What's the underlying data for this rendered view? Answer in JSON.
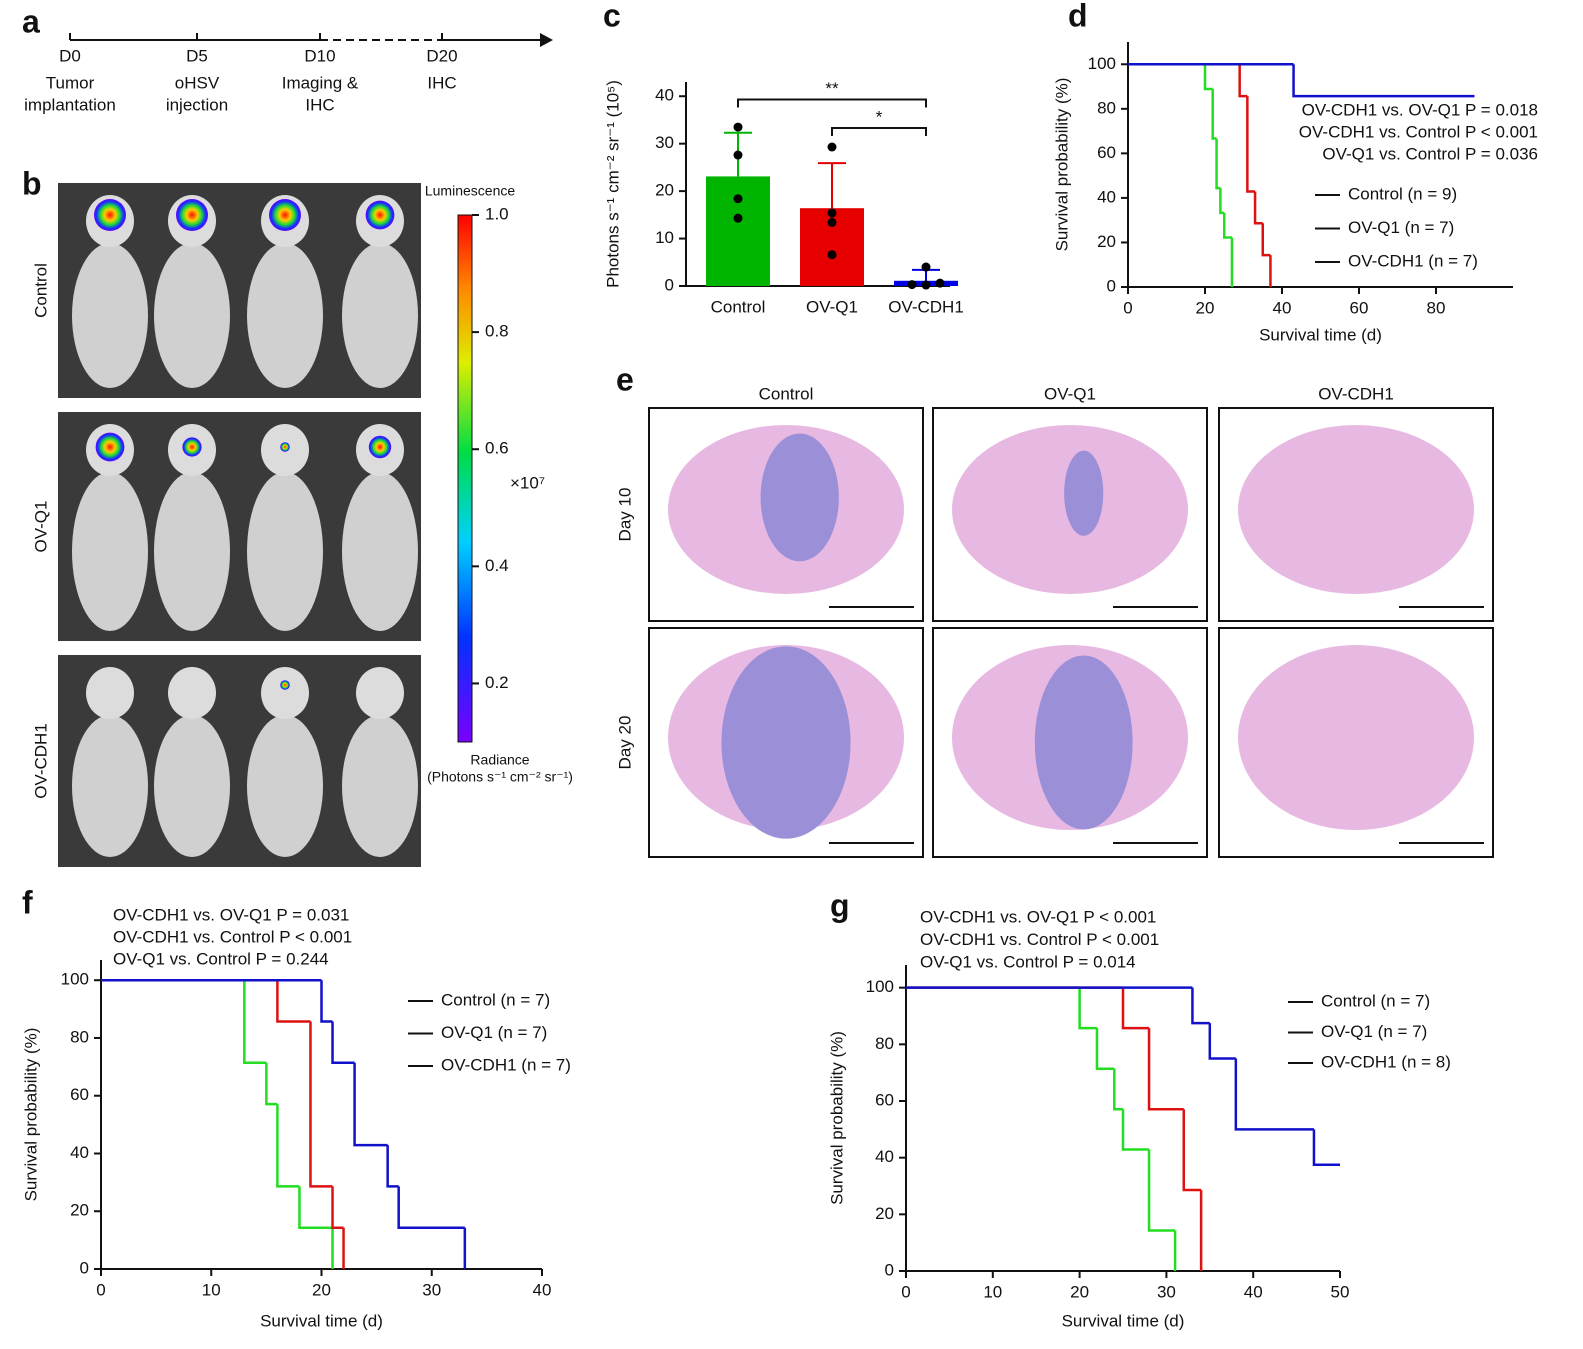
{
  "panel_a": {
    "letter": "a",
    "ticks": [
      "D0",
      "D5",
      "D10",
      "D20"
    ],
    "events": [
      [
        "Tumor",
        "implantation"
      ],
      [
        "oHSV",
        "injection"
      ],
      [
        "Imaging &",
        "IHC"
      ],
      [
        "IHC"
      ]
    ]
  },
  "panel_b": {
    "letter": "b",
    "rows": [
      "Control",
      "OV-Q1",
      "OV-CDH1"
    ],
    "colorbar": {
      "title": "Luminescence",
      "ylim": [
        0.1,
        1.0
      ],
      "yticks": [
        0.2,
        0.4,
        0.6,
        0.8,
        {
          "value": 1,
          "label": "1.0"
        }
      ],
      "multiplier": "×10⁷",
      "label": [
        "Radiance",
        "(Photons s⁻¹ cm⁻² sr⁻¹)"
      ]
    }
  },
  "panel_e": {
    "letter": "e",
    "columns": [
      "Control",
      "OV-Q1",
      "OV-CDH1"
    ],
    "rows": [
      "Day 10",
      "Day 20"
    ]
  },
  "chart_data": [
    {
      "panel": "c",
      "type": "bar",
      "ylabel": "Photons s⁻¹ cm⁻² sr⁻¹ (10⁵)",
      "categories": [
        "Control",
        "OV-Q1",
        "OV-CDH1"
      ],
      "values": [
        23.1,
        16.4,
        1.1
      ],
      "errors": [
        9.2,
        9.5,
        2.3
      ],
      "colors": [
        "#00b400",
        "#e60000",
        "#0000e6"
      ],
      "points": [
        [
          33.5,
          27.6,
          18.4,
          14.3
        ],
        [
          29.3,
          15.4,
          13.4,
          6.6
        ],
        [
          4,
          0.3,
          0.2,
          0.6
        ]
      ],
      "ylim": [
        0,
        43
      ],
      "yticks": [
        0,
        10,
        20,
        30,
        40
      ],
      "significance": [
        {
          "from": 0,
          "to": 2,
          "label": "**"
        },
        {
          "from": 1,
          "to": 2,
          "label": "*"
        }
      ]
    },
    {
      "panel": "d",
      "type": "step",
      "xlabel": "Survival time (d)",
      "ylabel": "Survival probability (%)",
      "xlim": [
        0,
        100
      ],
      "ylim": [
        0,
        110
      ],
      "xticks": [
        0,
        20,
        40,
        60,
        80
      ],
      "yticks": [
        0,
        20,
        40,
        60,
        80,
        100
      ],
      "annotations": [
        "OV-CDH1 vs. OV-Q1  P = 0.018",
        "OV-CDH1 vs. Control  P < 0.001",
        "OV-Q1 vs. Control  P = 0.036"
      ],
      "series": [
        {
          "name": "Control (n = 9)",
          "color": "#22dd22",
          "x": [
            0,
            20,
            22,
            23,
            24,
            25,
            27
          ],
          "values": [
            100,
            88.9,
            66.7,
            44.4,
            33.3,
            22.2,
            0
          ]
        },
        {
          "name": "OV-Q1 (n = 7)",
          "color": "#dd1111",
          "x": [
            0,
            29,
            31,
            33,
            35,
            37
          ],
          "values": [
            100,
            85.7,
            42.9,
            28.6,
            14.3,
            0
          ]
        },
        {
          "name": "OV-CDH1 (n = 7)",
          "color": "#1111cc",
          "x": [
            0,
            43,
            90
          ],
          "values": [
            100,
            85.7,
            85.7
          ]
        }
      ]
    },
    {
      "panel": "f",
      "type": "step",
      "xlabel": "Survival time (d)",
      "ylabel": "Survival probability (%)",
      "xlim": [
        0,
        40
      ],
      "ylim": [
        0,
        107
      ],
      "xticks": [
        0,
        10,
        20,
        30,
        40
      ],
      "yticks": [
        0,
        20,
        40,
        60,
        80,
        100
      ],
      "annotations": [
        "OV-CDH1 vs. OV-Q1 P = 0.031",
        "OV-CDH1 vs. Control P < 0.001",
        "OV-Q1 vs. Control P = 0.244"
      ],
      "series": [
        {
          "name": "Control (n = 7)",
          "color": "#22dd22",
          "x": [
            0,
            13,
            15,
            16,
            18,
            21
          ],
          "values": [
            100,
            71.4,
            57.1,
            28.6,
            14.3,
            0
          ]
        },
        {
          "name": "OV-Q1 (n = 7)",
          "color": "#dd1111",
          "x": [
            0,
            16,
            19,
            21,
            22
          ],
          "values": [
            100,
            85.7,
            28.6,
            14.3,
            0
          ]
        },
        {
          "name": "OV-CDH1 (n = 7)",
          "color": "#1111cc",
          "x": [
            0,
            20,
            21,
            23,
            26,
            27,
            33
          ],
          "values": [
            100,
            85.7,
            71.4,
            42.9,
            28.6,
            14.3,
            0
          ]
        }
      ]
    },
    {
      "panel": "g",
      "type": "step",
      "xlabel": "Survival time (d)",
      "ylabel": "Survival probability (%)",
      "xlim": [
        0,
        50
      ],
      "ylim": [
        0,
        108
      ],
      "xticks": [
        0,
        10,
        20,
        30,
        40,
        50
      ],
      "yticks": [
        0,
        20,
        40,
        60,
        80,
        100
      ],
      "annotations": [
        "OV-CDH1 vs. OV-Q1 P < 0.001",
        "OV-CDH1 vs. Control P < 0.001",
        "OV-Q1 vs. Control P = 0.014"
      ],
      "series": [
        {
          "name": "Control (n = 7)",
          "color": "#22dd22",
          "x": [
            0,
            20,
            22,
            24,
            25,
            28,
            31
          ],
          "values": [
            100,
            85.7,
            71.4,
            57.1,
            42.9,
            14.3,
            0
          ]
        },
        {
          "name": "OV-Q1 (n = 7)",
          "color": "#dd1111",
          "x": [
            0,
            25,
            28,
            32,
            34
          ],
          "values": [
            100,
            85.7,
            57.1,
            28.6,
            0
          ]
        },
        {
          "name": "OV-CDH1 (n = 8)",
          "color": "#1111cc",
          "x": [
            0,
            33,
            35,
            38,
            47,
            50
          ],
          "values": [
            100,
            87.5,
            75,
            50,
            37.5,
            37.5
          ]
        }
      ]
    }
  ]
}
